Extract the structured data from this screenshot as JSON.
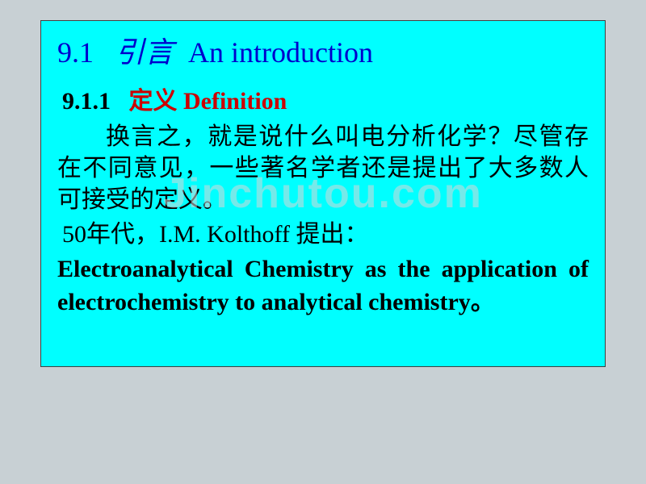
{
  "colors": {
    "slide_bg": "#00ffff",
    "page_bg": "#c8d0d4",
    "title_color": "#0000cc",
    "subtitle_num_color": "#000000",
    "subtitle_text_color": "#cc0000",
    "body_color": "#000000",
    "watermark_color": "#d8d8d8",
    "border_color": "#404040"
  },
  "title": {
    "num": "9.1",
    "zh": "引言",
    "en": "An introduction"
  },
  "subtitle": {
    "num": "9.1.1",
    "zh": "定义",
    "en": "Definition"
  },
  "para1": "换言之，就是说什么叫电分析化学？尽管存在不同意见，一些著名学者还是提出了大多数人可接受的定义。",
  "para2_prefix": "50年代，",
  "para2_name": "I.M. Kolthoff",
  "para2_suffix": " 提出：",
  "para3": "Electroanalytical Chemistry as the application of electrochemistry to analytical chemistry。",
  "watermark": "Jinchutou.com"
}
